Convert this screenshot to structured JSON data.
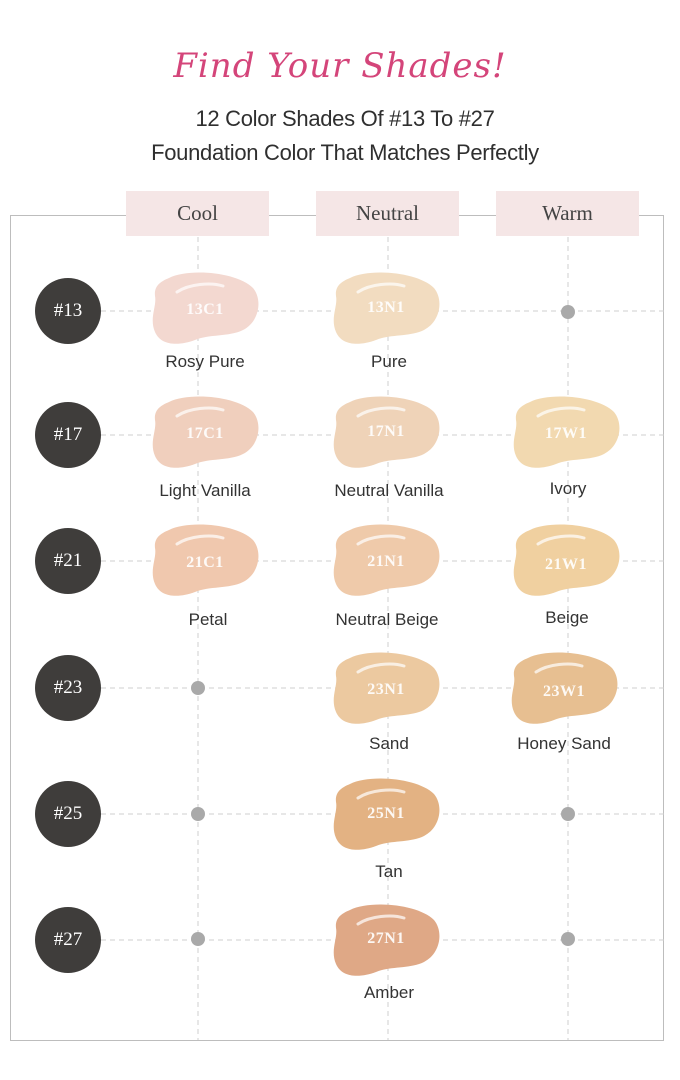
{
  "header": {
    "script_title": "Find Your Shades!",
    "subtitle_line1": "12 Color Shades Of #13 To #27",
    "subtitle_line2": "Foundation Color That Matches Perfectly"
  },
  "columns": [
    "Cool",
    "Neutral",
    "Warm"
  ],
  "rows": [
    "#13",
    "#17",
    "#21",
    "#23",
    "#25",
    "#27"
  ],
  "shades": [
    {
      "code": "13C1",
      "name": "Rosy Pure",
      "color": "#f3d8d0"
    },
    {
      "code": "13N1",
      "name": "Pure",
      "color": "#f2dcc0"
    },
    {
      "code": "17C1",
      "name": "Light Vanilla",
      "color": "#f0cfbd"
    },
    {
      "code": "17N1",
      "name": "Neutral Vanilla",
      "color": "#efd3b8"
    },
    {
      "code": "17W1",
      "name": "Ivory",
      "color": "#f2d9b0"
    },
    {
      "code": "21C1",
      "name": "Petal",
      "color": "#f0c8ae"
    },
    {
      "code": "21N1",
      "name": "Neutral Beige",
      "color": "#efcaaa"
    },
    {
      "code": "21W1",
      "name": "Beige",
      "color": "#f0d0a0"
    },
    {
      "code": "23N1",
      "name": "Sand",
      "color": "#ecc9a0"
    },
    {
      "code": "23W1",
      "name": "Honey Sand",
      "color": "#e7bf91"
    },
    {
      "code": "25N1",
      "name": "Tan",
      "color": "#e3b283"
    },
    {
      "code": "27N1",
      "name": "Amber",
      "color": "#dfa886"
    }
  ]
}
